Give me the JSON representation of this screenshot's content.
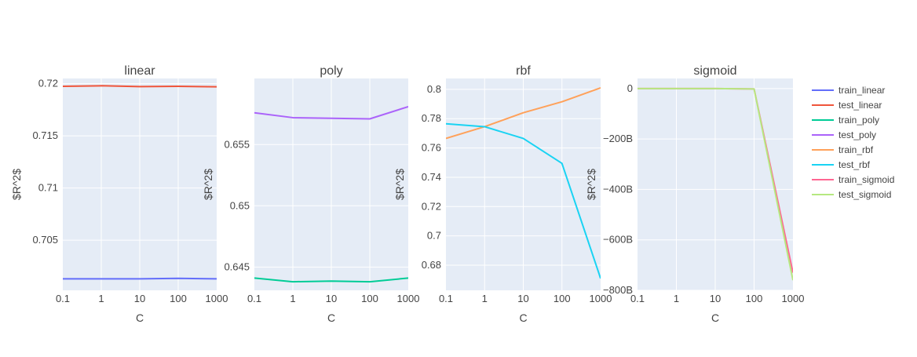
{
  "figure": {
    "legend_position": "right",
    "background": "#ffffff",
    "plot_background": "#e5ecf6",
    "grid_color": "#ffffff",
    "text_color": "#444444"
  },
  "chart_data": [
    {
      "type": "line",
      "title": "linear",
      "xlabel": "C",
      "ylabel": "$R^2$",
      "x_scale": "log",
      "x": [
        0.1,
        1,
        10,
        100,
        1000
      ],
      "x_ticks": [
        "0.1",
        "1",
        "10",
        "100",
        "1000"
      ],
      "y_ticks": [
        {
          "value": 0.705,
          "label": "0.705"
        },
        {
          "value": 0.71,
          "label": "0.71"
        },
        {
          "value": 0.715,
          "label": "0.715"
        },
        {
          "value": 0.72,
          "label": "0.72"
        }
      ],
      "ylim": [
        0.7002,
        0.7205
      ],
      "grid": true,
      "series": [
        {
          "name": "train_linear",
          "color": "#636efa",
          "values": [
            0.7013,
            0.7013,
            0.7013,
            0.70135,
            0.7013
          ]
        },
        {
          "name": "test_linear",
          "color": "#ef553b",
          "values": [
            0.71975,
            0.7198,
            0.71972,
            0.71975,
            0.7197
          ]
        }
      ]
    },
    {
      "type": "line",
      "title": "poly",
      "xlabel": "C",
      "ylabel": "$R^2$",
      "x_scale": "log",
      "x": [
        0.1,
        1,
        10,
        100,
        1000
      ],
      "x_ticks": [
        "0.1",
        "1",
        "10",
        "100",
        "1000"
      ],
      "y_ticks": [
        {
          "value": 0.645,
          "label": "0.645"
        },
        {
          "value": 0.65,
          "label": "0.65"
        },
        {
          "value": 0.655,
          "label": "0.655"
        }
      ],
      "ylim": [
        0.6431,
        0.6604
      ],
      "grid": true,
      "series": [
        {
          "name": "train_poly",
          "color": "#00cc96",
          "values": [
            0.6441,
            0.6438,
            0.64385,
            0.6438,
            0.6441
          ]
        },
        {
          "name": "test_poly",
          "color": "#ab63fa",
          "values": [
            0.6576,
            0.6572,
            0.65715,
            0.6571,
            0.6581
          ]
        }
      ]
    },
    {
      "type": "line",
      "title": "rbf",
      "xlabel": "C",
      "ylabel": "$R^2$",
      "x_scale": "log",
      "x": [
        0.1,
        1,
        10,
        100,
        1000
      ],
      "x_ticks": [
        "0.1",
        "1",
        "10",
        "100",
        "1000"
      ],
      "y_ticks": [
        {
          "value": 0.68,
          "label": "0.68"
        },
        {
          "value": 0.7,
          "label": "0.7"
        },
        {
          "value": 0.72,
          "label": "0.72"
        },
        {
          "value": 0.74,
          "label": "0.74"
        },
        {
          "value": 0.76,
          "label": "0.76"
        },
        {
          "value": 0.78,
          "label": "0.78"
        },
        {
          "value": 0.8,
          "label": "0.8"
        }
      ],
      "ylim": [
        0.6629,
        0.8074
      ],
      "grid": true,
      "series": [
        {
          "name": "train_rbf",
          "color": "#ffa15a",
          "values": [
            0.7665,
            0.7745,
            0.784,
            0.7915,
            0.801
          ]
        },
        {
          "name": "test_rbf",
          "color": "#19d3f3",
          "values": [
            0.7765,
            0.7745,
            0.7665,
            0.7495,
            0.671
          ]
        }
      ]
    },
    {
      "type": "line",
      "title": "sigmoid",
      "xlabel": "C",
      "ylabel": "$R^2$",
      "x_scale": "log",
      "x": [
        0.1,
        1,
        10,
        100,
        1000
      ],
      "x_ticks": [
        "0.1",
        "1",
        "10",
        "100",
        "1000"
      ],
      "y_ticks": [
        {
          "value": 0,
          "label": "0"
        },
        {
          "value": -200,
          "label": "−200B"
        },
        {
          "value": -400,
          "label": "−400B"
        },
        {
          "value": -600,
          "label": "−600B"
        },
        {
          "value": -800,
          "label": "−800B"
        }
      ],
      "y_unit": "billions",
      "ylim": [
        -800,
        40
      ],
      "grid": true,
      "series": [
        {
          "name": "train_sigmoid",
          "color": "#ff6692",
          "values": [
            0,
            0,
            0,
            -1.5,
            -730
          ]
        },
        {
          "name": "test_sigmoid",
          "color": "#b6e880",
          "values": [
            0,
            0,
            0,
            -1.5,
            -760
          ]
        }
      ]
    }
  ],
  "legend": [
    {
      "label": "train_linear",
      "color": "#636efa"
    },
    {
      "label": "test_linear",
      "color": "#ef553b"
    },
    {
      "label": "train_poly",
      "color": "#00cc96"
    },
    {
      "label": "test_poly",
      "color": "#ab63fa"
    },
    {
      "label": "train_rbf",
      "color": "#ffa15a"
    },
    {
      "label": "test_rbf",
      "color": "#19d3f3"
    },
    {
      "label": "train_sigmoid",
      "color": "#ff6692"
    },
    {
      "label": "test_sigmoid",
      "color": "#b6e880"
    }
  ]
}
